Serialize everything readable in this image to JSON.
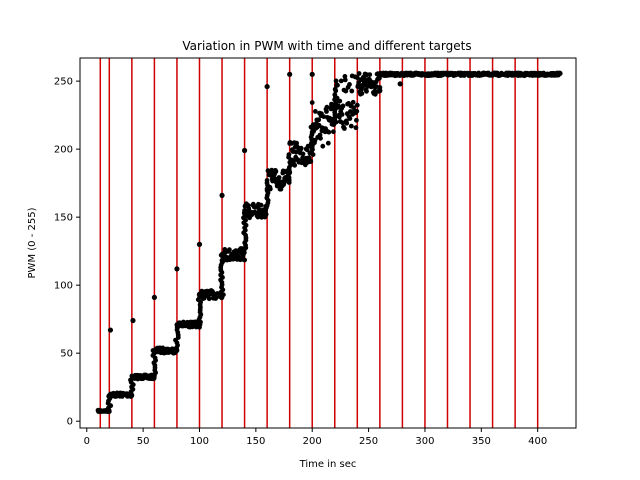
{
  "chart_data": {
    "type": "scatter",
    "title": "Variation in PWM with time and different targets",
    "xlabel": "Time in sec",
    "ylabel": "PWM (0 - 255)",
    "xlim": [
      -6,
      434
    ],
    "ylim": [
      -5,
      267
    ],
    "xticks": [
      0,
      50,
      100,
      150,
      200,
      250,
      300,
      350,
      400
    ],
    "yticks": [
      0,
      50,
      100,
      150,
      200,
      250
    ],
    "grid": false,
    "colors": {
      "points": "#000000",
      "target_lines": "#d00000"
    },
    "target_change_lines_x": [
      12,
      20,
      40,
      60,
      80,
      100,
      120,
      140,
      160,
      180,
      200,
      220,
      240,
      260,
      280,
      300,
      320,
      340,
      360,
      380,
      400
    ],
    "series": [
      {
        "marker": "dot",
        "segments": [
          {
            "x": [
              10,
              20
            ],
            "y": [
              7,
              8
            ]
          },
          {
            "x": [
              20,
              40
            ],
            "y": [
              18,
              21
            ]
          },
          {
            "x": [
              40,
              60
            ],
            "y": [
              31,
              34
            ]
          },
          {
            "x": [
              60,
              80
            ],
            "y": [
              50,
              54
            ]
          },
          {
            "x": [
              80,
              100
            ],
            "y": [
              69,
              73
            ]
          },
          {
            "x": [
              100,
              120
            ],
            "y": [
              90,
              96
            ]
          },
          {
            "x": [
              120,
              140
            ],
            "y": [
              118,
              127
            ]
          },
          {
            "x": [
              140,
              160
            ],
            "y": [
              149,
              160
            ]
          },
          {
            "x": [
              160,
              180
            ],
            "y": [
              170,
              185
            ]
          },
          {
            "x": [
              180,
              200
            ],
            "y": [
              188,
              205
            ]
          },
          {
            "x": [
              200,
              220
            ],
            "y": [
              200,
              235
            ]
          },
          {
            "x": [
              220,
              240
            ],
            "y": [
              215,
              255
            ]
          },
          {
            "x": [
              240,
              260
            ],
            "y": [
              240,
              256
            ]
          },
          {
            "x": [
              260,
              420
            ],
            "y": [
              254,
              256
            ]
          }
        ],
        "transitions": [
          {
            "x": 12,
            "from": 7,
            "to": 8
          },
          {
            "x": 20,
            "from": 8,
            "to": 20
          },
          {
            "x": 40,
            "from": 20,
            "to": 32
          },
          {
            "x": 60,
            "from": 32,
            "to": 52
          },
          {
            "x": 80,
            "from": 52,
            "to": 71
          },
          {
            "x": 100,
            "from": 71,
            "to": 93
          },
          {
            "x": 120,
            "from": 93,
            "to": 122
          },
          {
            "x": 140,
            "from": 122,
            "to": 155
          },
          {
            "x": 160,
            "from": 155,
            "to": 177
          },
          {
            "x": 180,
            "from": 177,
            "to": 196
          },
          {
            "x": 200,
            "from": 196,
            "to": 218
          },
          {
            "x": 220,
            "from": 218,
            "to": 240
          }
        ],
        "outliers": [
          {
            "x": 21,
            "y": 67
          },
          {
            "x": 41,
            "y": 74
          },
          {
            "x": 60,
            "y": 91
          },
          {
            "x": 80,
            "y": 112
          },
          {
            "x": 100,
            "y": 130
          },
          {
            "x": 120,
            "y": 166
          },
          {
            "x": 140,
            "y": 199
          },
          {
            "x": 160,
            "y": 246
          },
          {
            "x": 180,
            "y": 255
          },
          {
            "x": 200,
            "y": 255
          },
          {
            "x": 260,
            "y": 243
          },
          {
            "x": 278,
            "y": 248
          }
        ]
      }
    ]
  }
}
